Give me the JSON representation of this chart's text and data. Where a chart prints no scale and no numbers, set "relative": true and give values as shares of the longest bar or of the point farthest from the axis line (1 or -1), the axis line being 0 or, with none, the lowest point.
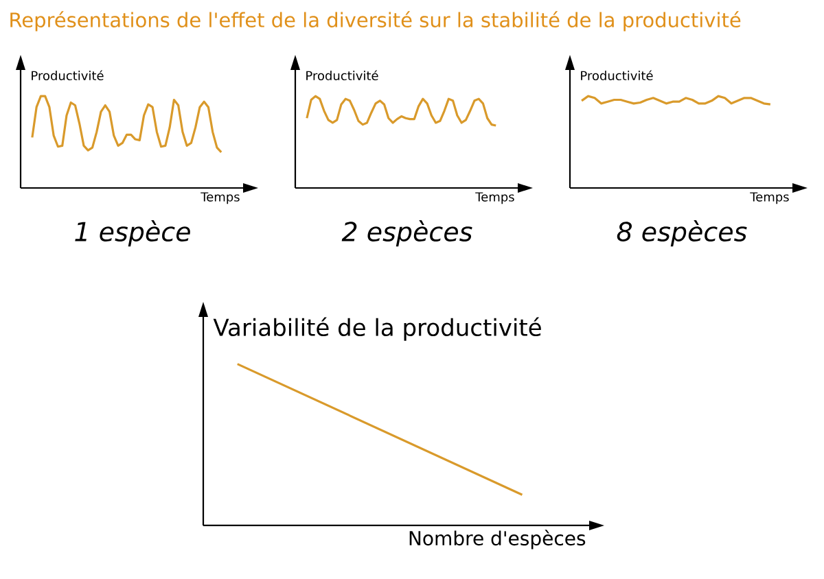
{
  "chart_data": [
    {
      "type": "other",
      "title": "Représentations de l'effet de la diversité sur la stabilité de la productivité"
    },
    {
      "type": "line",
      "title": "1 espèce",
      "xlabel": "Temps",
      "ylabel": "Productivité",
      "relative": true,
      "color": "#d99a2b",
      "categories": [
        null,
        null,
        null,
        null,
        null,
        null,
        null,
        null,
        null,
        null,
        null,
        null,
        null,
        null,
        null,
        null,
        null,
        null,
        null,
        null,
        null,
        null,
        null,
        null,
        null,
        null,
        null,
        null,
        null,
        null,
        null,
        null,
        null,
        null,
        null,
        null,
        null,
        null,
        null,
        null,
        null,
        null,
        null,
        null,
        null
      ],
      "values": [
        0.55,
        0.88,
        1.0,
        1.0,
        0.88,
        0.57,
        0.45,
        0.46,
        0.79,
        0.93,
        0.9,
        0.7,
        0.46,
        0.41,
        0.44,
        0.61,
        0.83,
        0.9,
        0.83,
        0.57,
        0.46,
        0.49,
        0.58,
        0.58,
        0.53,
        0.52,
        0.79,
        0.91,
        0.88,
        0.61,
        0.45,
        0.46,
        0.66,
        0.96,
        0.9,
        0.61,
        0.46,
        0.49,
        0.66,
        0.88,
        0.94,
        0.88,
        0.61,
        0.44,
        0.39
      ]
    },
    {
      "type": "line",
      "title": "2 espèces",
      "xlabel": "Temps",
      "ylabel": "Productivité",
      "relative": true,
      "color": "#d99a2b",
      "categories": [
        null,
        null,
        null,
        null,
        null,
        null,
        null,
        null,
        null,
        null,
        null,
        null,
        null,
        null,
        null,
        null,
        null,
        null,
        null,
        null,
        null,
        null,
        null,
        null,
        null,
        null,
        null,
        null,
        null,
        null,
        null,
        null,
        null,
        null,
        null,
        null,
        null,
        null,
        null,
        null,
        null,
        null,
        null,
        null,
        null
      ],
      "values": [
        0.76,
        0.96,
        1.0,
        0.97,
        0.84,
        0.74,
        0.71,
        0.74,
        0.91,
        0.97,
        0.95,
        0.85,
        0.73,
        0.69,
        0.71,
        0.82,
        0.92,
        0.95,
        0.91,
        0.76,
        0.71,
        0.75,
        0.78,
        0.76,
        0.75,
        0.75,
        0.89,
        0.97,
        0.92,
        0.79,
        0.71,
        0.73,
        0.84,
        0.97,
        0.95,
        0.79,
        0.71,
        0.74,
        0.84,
        0.95,
        0.97,
        0.92,
        0.76,
        0.69,
        0.68
      ]
    },
    {
      "type": "line",
      "title": "8 espèces",
      "xlabel": "Temps",
      "ylabel": "Productivité",
      "relative": true,
      "color": "#d99a2b",
      "categories": [
        null,
        null,
        null,
        null,
        null,
        null,
        null,
        null,
        null,
        null,
        null,
        null,
        null,
        null,
        null,
        null,
        null,
        null,
        null,
        null,
        null,
        null,
        null,
        null,
        null,
        null,
        null,
        null,
        null,
        null
      ],
      "values": [
        0.95,
        1.0,
        0.98,
        0.92,
        0.94,
        0.96,
        0.96,
        0.94,
        0.92,
        0.93,
        0.96,
        0.98,
        0.95,
        0.92,
        0.94,
        0.94,
        0.98,
        0.96,
        0.92,
        0.92,
        0.95,
        1.0,
        0.98,
        0.92,
        0.95,
        0.98,
        0.98,
        0.95,
        0.92,
        0.91
      ]
    },
    {
      "type": "line",
      "xlabel": "Nombre d'espèces",
      "ylabel": "Variabilité de la productivité",
      "relative": true,
      "color": "#d99a2b",
      "categories": [
        null,
        null
      ],
      "values": [
        1.0,
        0.19
      ]
    }
  ]
}
